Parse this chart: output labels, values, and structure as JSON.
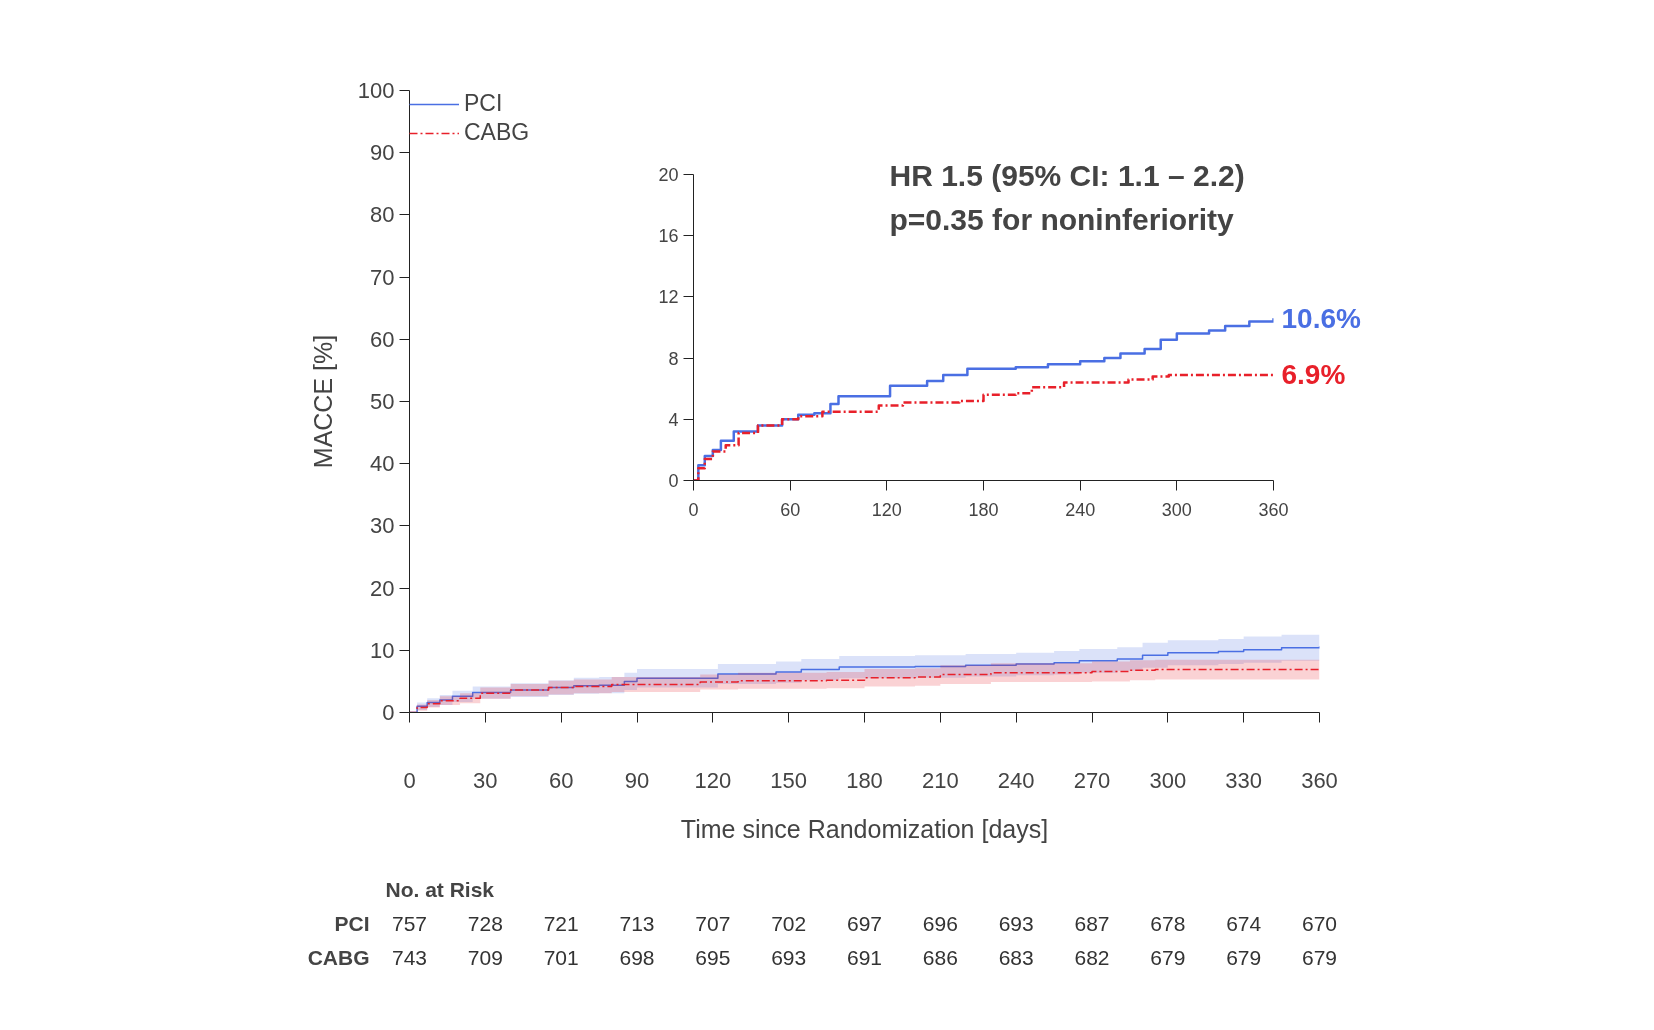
{
  "chart_data": [
    {
      "type": "step",
      "xlabel": "Time since Randomization [days]",
      "ylabel": "MACCE [%]",
      "xlim": [
        0,
        360
      ],
      "ylim": [
        0,
        100
      ],
      "xticks": [
        0,
        30,
        60,
        90,
        120,
        150,
        180,
        210,
        240,
        270,
        300,
        330,
        360
      ],
      "yticks": [
        0,
        10,
        20,
        30,
        40,
        50,
        60,
        70,
        80,
        90,
        100
      ],
      "grid": false,
      "legend": "top left",
      "annotations": [
        "No. at Risk",
        "PCI 757 728 721 713 707 702 697 696 693 687 678 674 670",
        "CABG 743 709 701 698 695 693 691 686 683 682 679 679 679"
      ],
      "series": [
        {
          "name": "PCI",
          "color": "#4a6fe3",
          "line_style": "solid",
          "x": [
            0,
            3,
            7,
            12,
            17,
            25,
            40,
            55,
            65,
            75,
            85,
            90,
            115,
            122,
            145,
            155,
            170,
            200,
            220,
            240,
            255,
            265,
            280,
            290,
            300,
            320,
            330,
            345,
            360
          ],
          "values": [
            0,
            1.0,
            1.6,
            2.0,
            2.6,
            3.2,
            3.6,
            4.0,
            4.3,
            4.4,
            5.0,
            5.5,
            5.5,
            6.2,
            6.5,
            6.9,
            7.3,
            7.4,
            7.6,
            7.8,
            8.0,
            8.3,
            8.6,
            9.2,
            9.6,
            9.8,
            10.1,
            10.4,
            10.6
          ],
          "lower": [
            0,
            0.4,
            0.9,
            1.2,
            1.7,
            2.2,
            2.5,
            2.8,
            3.0,
            3.1,
            3.6,
            4.0,
            4.0,
            4.6,
            4.8,
            5.2,
            5.5,
            5.6,
            5.8,
            6.0,
            6.1,
            6.4,
            6.7,
            7.2,
            7.6,
            7.8,
            8.0,
            8.3,
            8.5
          ],
          "upper": [
            0,
            1.6,
            2.3,
            2.8,
            3.5,
            4.2,
            4.7,
            5.2,
            5.6,
            5.7,
            6.4,
            7.0,
            7.0,
            7.8,
            8.2,
            8.6,
            9.1,
            9.2,
            9.4,
            9.6,
            9.9,
            10.2,
            10.5,
            11.2,
            11.6,
            11.8,
            12.2,
            12.5,
            12.7
          ]
        },
        {
          "name": "CABG",
          "color": "#e8202a",
          "line_style": "dashed",
          "x": [
            0,
            3,
            7,
            12,
            20,
            28,
            40,
            55,
            65,
            80,
            100,
            115,
            130,
            165,
            180,
            200,
            210,
            230,
            270,
            285,
            295,
            360
          ],
          "values": [
            0,
            0.8,
            1.4,
            1.9,
            2.3,
            3.1,
            3.6,
            4.0,
            4.2,
            4.5,
            4.5,
            4.9,
            5.1,
            5.2,
            5.6,
            5.7,
            6.1,
            6.4,
            6.6,
            6.8,
            6.9,
            6.9
          ],
          "lower": [
            0,
            0.3,
            0.8,
            1.2,
            1.5,
            2.2,
            2.6,
            2.9,
            3.1,
            3.3,
            3.3,
            3.7,
            3.8,
            3.9,
            4.2,
            4.3,
            4.6,
            4.9,
            5.0,
            5.2,
            5.3,
            5.3
          ],
          "upper": [
            0,
            1.3,
            2.0,
            2.6,
            3.1,
            4.0,
            4.6,
            5.1,
            5.3,
            5.7,
            5.7,
            6.1,
            6.4,
            6.5,
            7.0,
            7.1,
            7.6,
            7.9,
            8.2,
            8.4,
            8.5,
            8.5
          ]
        }
      ]
    },
    {
      "type": "step",
      "xlim": [
        0,
        360
      ],
      "ylim": [
        0,
        20
      ],
      "xticks": [
        0,
        60,
        120,
        180,
        240,
        300,
        360
      ],
      "yticks": [
        0,
        4,
        8,
        12,
        16,
        20
      ],
      "grid": false,
      "legend": false,
      "annotations": [
        "HR 1.5 (95% CI: 1.1 – 2.2)",
        "p=0.35 for noninferiority",
        {
          "text": "10.6%",
          "x": 360,
          "y": 10.6
        },
        {
          "text": "6.9%",
          "x": 360,
          "y": 6.9
        }
      ],
      "series": [
        {
          "color": "#4a6fe3",
          "line_style": "solid",
          "x": [
            0,
            3,
            7,
            12,
            17,
            25,
            40,
            55,
            65,
            75,
            85,
            90,
            115,
            122,
            145,
            155,
            170,
            200,
            220,
            240,
            255,
            265,
            280,
            290,
            300,
            320,
            330,
            345,
            360
          ],
          "values": [
            0,
            1.0,
            1.6,
            2.0,
            2.6,
            3.2,
            3.6,
            4.0,
            4.3,
            4.4,
            5.0,
            5.5,
            5.5,
            6.2,
            6.5,
            6.9,
            7.3,
            7.4,
            7.6,
            7.8,
            8.0,
            8.3,
            8.6,
            9.2,
            9.6,
            9.8,
            10.1,
            10.4,
            10.6
          ]
        },
        {
          "color": "#e8202a",
          "line_style": "dashed",
          "x": [
            0,
            3,
            7,
            12,
            20,
            28,
            40,
            55,
            65,
            80,
            100,
            115,
            130,
            165,
            180,
            200,
            210,
            230,
            270,
            285,
            295,
            360
          ],
          "values": [
            0,
            0.8,
            1.4,
            1.9,
            2.3,
            3.1,
            3.6,
            4.0,
            4.2,
            4.5,
            4.5,
            4.9,
            5.1,
            5.2,
            5.6,
            5.7,
            6.1,
            6.4,
            6.6,
            6.8,
            6.9,
            6.9
          ]
        }
      ]
    }
  ]
}
